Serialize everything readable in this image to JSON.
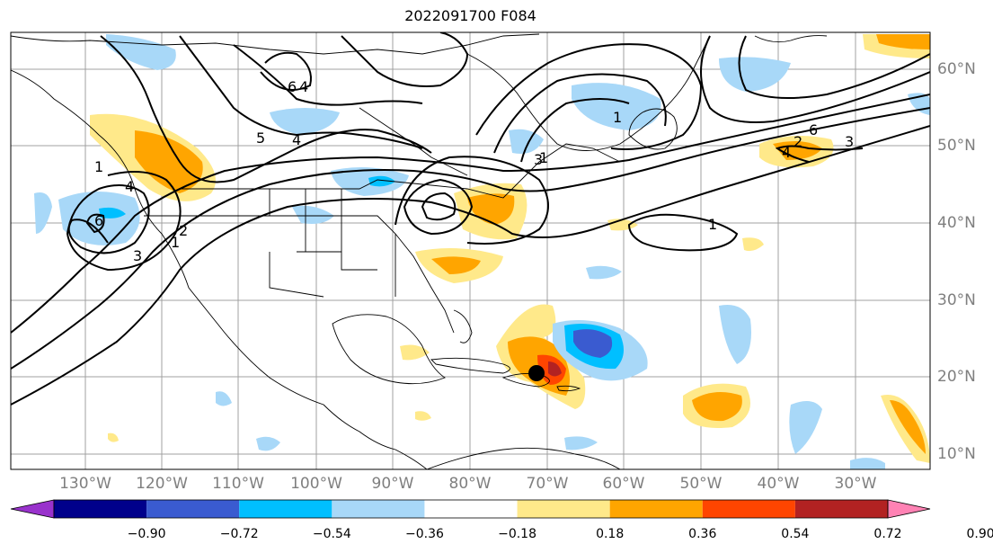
{
  "title": "2022091700 F084",
  "lon_labels": [
    "130°W",
    "120°W",
    "110°W",
    "100°W",
    "90°W",
    "80°W",
    "70°W",
    "60°W",
    "50°W",
    "40°W",
    "30°W"
  ],
  "lat_labels": [
    "60°N",
    "50°N",
    "40°N",
    "30°N",
    "20°N",
    "10°N"
  ],
  "colorbar": {
    "ticks": [
      "−0.90",
      "−0.72",
      "−0.54",
      "−0.36",
      "−0.18",
      "0.18",
      "0.36",
      "0.54",
      "0.72",
      "0.90"
    ],
    "colors": [
      "#9932cc",
      "#00008b",
      "#3a5bd0",
      "#00bfff",
      "#a8d8f8",
      "#ffffff",
      "#ffe98a",
      "#ffa500",
      "#ff4500",
      "#b22222",
      "#ff82b4"
    ]
  },
  "contour_labels": [
    "6",
    "4",
    "5",
    "4",
    "1",
    "4",
    "6",
    "2",
    "3",
    "1",
    "3",
    "1",
    "1",
    "2",
    "6",
    "3",
    "1",
    "4"
  ],
  "hurricane_marker": "storm-center"
}
